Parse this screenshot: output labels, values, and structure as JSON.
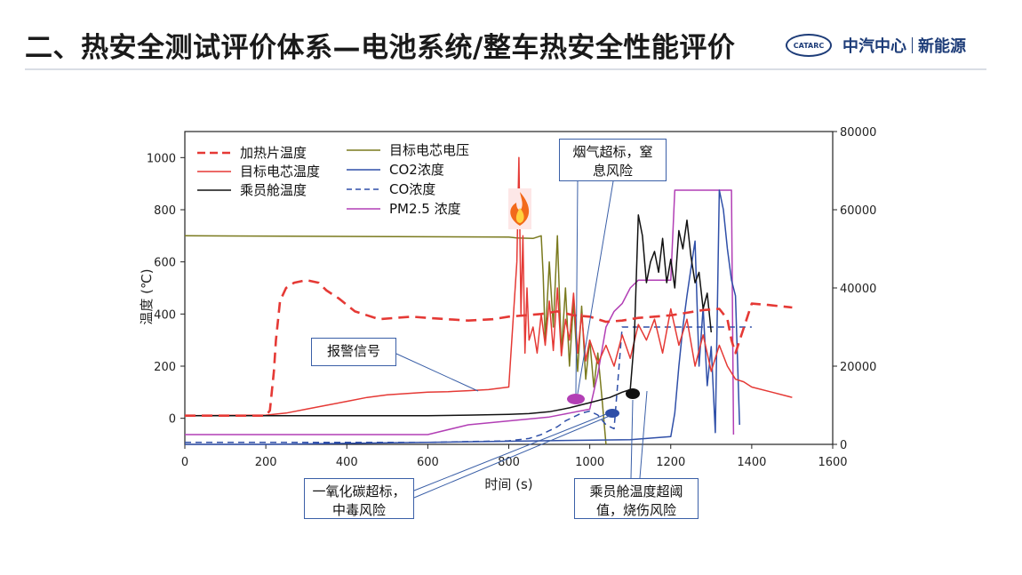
{
  "header": {
    "title": "二、热安全测试评价体系—电池系统/整车热安全性能评价",
    "logo_mark": "CATARC",
    "logo_org": "中汽中心",
    "logo_unit": "新能源"
  },
  "callouts": {
    "alarm": "报警信号",
    "smoke_line1": "烟气超标，窒",
    "smoke_line2": "息风险",
    "co_line1": "一氧化碳超标，",
    "co_line2": "中毒风险",
    "cabin_line1": "乘员舱温度超阈",
    "cabin_line2": "值，烧伤风险"
  },
  "chart_data": {
    "type": "line",
    "xlabel": "时间 (s)",
    "ylabel": "温度 (℃)",
    "xlim": [
      0,
      1600
    ],
    "ylim": [
      -100,
      1100
    ],
    "y2lim": [
      0,
      80000
    ],
    "x_ticks": [
      "0",
      "200",
      "400",
      "600",
      "800",
      "1000",
      "1200",
      "1400",
      "1600"
    ],
    "y_ticks": [
      "0",
      "200",
      "400",
      "600",
      "800",
      "1000"
    ],
    "y2_ticks": [
      "0",
      "20000",
      "40000",
      "60000",
      "80000"
    ],
    "legend": [
      {
        "name": "加热片温度",
        "color": "#e53935",
        "dash": "dash"
      },
      {
        "name": "目标电芯温度",
        "color": "#e53935",
        "dash": "solid"
      },
      {
        "name": "乘员舱温度",
        "color": "#111111",
        "dash": "solid"
      },
      {
        "name": "目标电芯电压",
        "color": "#7a7a1e",
        "dash": "solid"
      },
      {
        "name": "CO2浓度",
        "color": "#2f4fa8",
        "dash": "solid"
      },
      {
        "name": "CO浓度",
        "color": "#2f4fa8",
        "dash": "dash"
      },
      {
        "name": "PM2.5 浓度",
        "color": "#b23fb5",
        "dash": "solid"
      }
    ],
    "series": [
      {
        "name": "加热片温度",
        "axis": "left",
        "x": [
          0,
          200,
          210,
          220,
          225,
          235,
          250,
          270,
          300,
          330,
          350,
          380,
          420,
          480,
          520,
          560,
          600,
          700,
          760,
          800,
          840,
          880,
          920,
          960,
          1000,
          1040,
          1080,
          1120,
          1160,
          1200,
          1240,
          1280,
          1320,
          1340,
          1350,
          1360,
          1400,
          1440,
          1500
        ],
        "y": [
          10,
          10,
          30,
          180,
          300,
          450,
          500,
          520,
          530,
          520,
          490,
          460,
          410,
          380,
          385,
          390,
          385,
          375,
          380,
          390,
          395,
          400,
          410,
          395,
          390,
          370,
          375,
          385,
          390,
          395,
          405,
          415,
          420,
          380,
          300,
          250,
          440,
          435,
          425
        ]
      },
      {
        "name": "目标电芯温度",
        "axis": "left",
        "x": [
          0,
          200,
          250,
          300,
          350,
          400,
          450,
          500,
          550,
          600,
          650,
          700,
          750,
          800,
          820,
          825,
          830,
          835,
          840,
          845,
          850,
          860,
          870,
          880,
          890,
          900,
          910,
          920,
          930,
          940,
          950,
          960,
          970,
          980,
          990,
          1000,
          1020,
          1040,
          1060,
          1080,
          1100,
          1120,
          1140,
          1160,
          1180,
          1200,
          1220,
          1240,
          1260,
          1280,
          1300,
          1320,
          1340,
          1360,
          1380,
          1400,
          1450,
          1500
        ],
        "y": [
          10,
          12,
          20,
          35,
          50,
          65,
          80,
          90,
          95,
          100,
          102,
          106,
          110,
          120,
          600,
          1000,
          400,
          700,
          250,
          500,
          300,
          350,
          250,
          400,
          280,
          450,
          260,
          500,
          240,
          380,
          300,
          480,
          250,
          400,
          220,
          300,
          210,
          280,
          200,
          320,
          230,
          360,
          300,
          380,
          250,
          420,
          280,
          380,
          200,
          320,
          180,
          280,
          200,
          150,
          140,
          120,
          100,
          80
        ]
      },
      {
        "name": "乘员舱温度",
        "axis": "left",
        "x": [
          0,
          200,
          300,
          400,
          500,
          600,
          700,
          800,
          850,
          900,
          950,
          1000,
          1050,
          1080,
          1100,
          1110,
          1120,
          1130,
          1140,
          1150,
          1160,
          1170,
          1180,
          1190,
          1200,
          1210,
          1220,
          1230,
          1240,
          1250,
          1260,
          1270,
          1280,
          1290,
          1300
        ],
        "y": [
          10,
          10,
          10,
          10,
          10,
          10,
          12,
          15,
          18,
          25,
          40,
          60,
          80,
          100,
          110,
          300,
          780,
          700,
          520,
          600,
          640,
          560,
          690,
          520,
          610,
          500,
          720,
          650,
          760,
          620,
          520,
          560,
          420,
          480,
          330
        ]
      },
      {
        "name": "目标电芯电压",
        "axis": "left",
        "x": [
          0,
          800,
          820,
          860,
          880,
          885,
          890,
          900,
          910,
          920,
          930,
          940,
          950,
          960,
          970,
          980,
          990,
          1000,
          1010,
          1020,
          1030,
          1040
        ],
        "y": [
          700,
          695,
          692,
          690,
          700,
          550,
          300,
          600,
          350,
          700,
          250,
          500,
          200,
          450,
          180,
          430,
          150,
          300,
          120,
          250,
          80,
          -100
        ]
      },
      {
        "name": "CO2浓度",
        "axis": "right",
        "x": [
          0,
          200,
          800,
          1100,
          1150,
          1200,
          1210,
          1220,
          1230,
          1240,
          1250,
          1260,
          1270,
          1280,
          1290,
          1300,
          1310,
          1320,
          1330,
          1340,
          1350,
          1360,
          1370
        ],
        "y": [
          0,
          0,
          800,
          1200,
          1600,
          2000,
          8000,
          20000,
          30000,
          38000,
          45000,
          52000,
          20000,
          35000,
          15000,
          25000,
          3000,
          65000,
          60000,
          50000,
          42000,
          38000,
          5000
        ]
      },
      {
        "name": "CO浓度",
        "axis": "right",
        "x": [
          0,
          200,
          400,
          600,
          700,
          800,
          850,
          880,
          900,
          920,
          940,
          960,
          980,
          1000,
          1020,
          1040,
          1060,
          1080,
          1100,
          1200,
          1300,
          1400
        ],
        "y": [
          500,
          500,
          500,
          500,
          700,
          900,
          1500,
          2500,
          3500,
          4500,
          6000,
          7000,
          8000,
          8500,
          7500,
          5000,
          4000,
          30000,
          30000,
          30000,
          30000,
          30000
        ]
      },
      {
        "name": "PM2.5 浓度",
        "axis": "right",
        "x": [
          0,
          200,
          600,
          700,
          800,
          900,
          950,
          1000,
          1020,
          1040,
          1060,
          1080,
          1100,
          1120,
          1140,
          1160,
          1180,
          1200,
          1210,
          1220,
          1240,
          1260,
          1280,
          1300,
          1340,
          1350,
          1355
        ],
        "y": [
          2500,
          2500,
          2500,
          5000,
          6000,
          7000,
          8000,
          9000,
          18000,
          30000,
          34000,
          36000,
          40000,
          42000,
          42000,
          42000,
          42000,
          42000,
          65000,
          65000,
          65000,
          65000,
          65000,
          65000,
          65000,
          65000,
          2500
        ]
      }
    ],
    "annotations": [
      "报警信号",
      "烟气超标，窒息风险",
      "一氧化碳超标，中毒风险",
      "乘员舱温度超阈值，烧伤风险"
    ]
  }
}
